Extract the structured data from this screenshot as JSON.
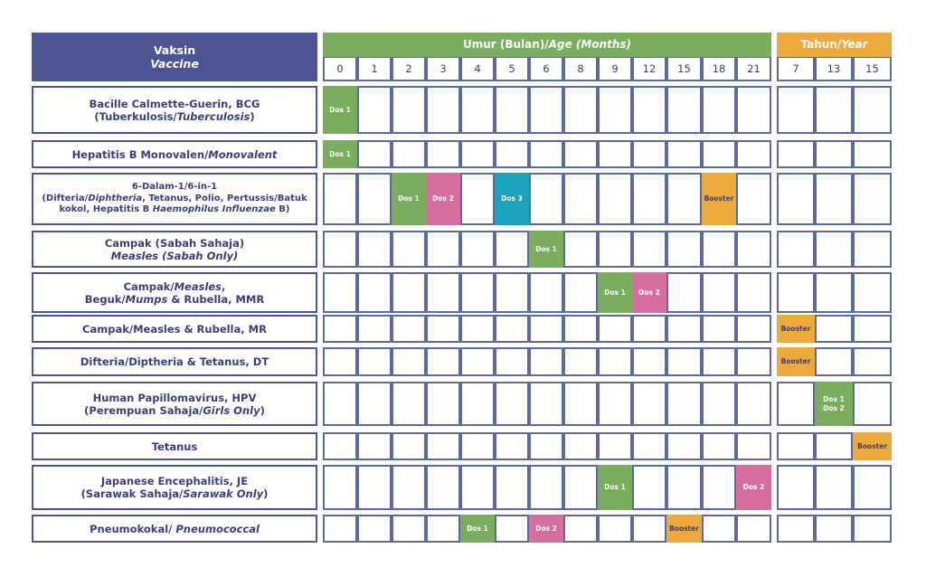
{
  "header": {
    "vaccine_ms": "Vaksin",
    "vaccine_en": "Vaccine",
    "months_prefix": "Umur (Bulan)/",
    "months_en": "Age (Months)",
    "years_prefix": "Tahun/",
    "years_en": "Year"
  },
  "months": [
    "0",
    "1",
    "2",
    "3",
    "4",
    "5",
    "6",
    "8",
    "9",
    "12",
    "15",
    "18",
    "21"
  ],
  "years": [
    "7",
    "13",
    "15"
  ],
  "colors": {
    "navy": "#4b5592",
    "green": "#7aad5e",
    "orange": "#eea93d",
    "pink": "#d56fa0",
    "teal": "#1ba3bd"
  },
  "vaccines": [
    {
      "lines": [
        [
          {
            "t": "Bacille Calmette-Guerin, BCG"
          }
        ],
        [
          {
            "t": "(Tuberkulosis/"
          },
          {
            "t": "Tuberculosis",
            "i": true
          },
          {
            "t": ")"
          }
        ]
      ],
      "doses": [
        {
          "col": 0,
          "label": "Dos 1",
          "color": "green"
        }
      ]
    },
    {
      "lines": [
        [
          {
            "t": "Hepatitis B Monovalen/"
          },
          {
            "t": "Monovalent",
            "i": true
          }
        ]
      ],
      "doses": [
        {
          "col": 0,
          "label": "Dos 1",
          "color": "green"
        }
      ]
    },
    {
      "small": true,
      "lines": [
        [
          {
            "t": "6-Dalam-1/6-in-1"
          }
        ],
        [
          {
            "t": "(Difteria/"
          },
          {
            "t": "Diphtheria",
            "i": true
          },
          {
            "t": ", Tetanus, Polio, Pertussis/Batuk"
          }
        ],
        [
          {
            "t": "kokol, Hepatitis B "
          },
          {
            "t": "Haemophilus Influenzae",
            "i": true
          },
          {
            "t": " B)"
          }
        ]
      ],
      "doses": [
        {
          "col": 2,
          "label": "Dos 1",
          "color": "green"
        },
        {
          "col": 3,
          "label": "Dos 2",
          "color": "pink"
        },
        {
          "col": 5,
          "label": "Dos 3",
          "color": "teal"
        },
        {
          "col": 11,
          "label": "Booster",
          "color": "orange"
        }
      ]
    },
    {
      "lines": [
        [
          {
            "t": "Campak (Sabah Sahaja)"
          }
        ],
        [
          {
            "t": "Measles (Sabah Only)",
            "i": true
          }
        ]
      ],
      "doses": [
        {
          "col": 6,
          "label": "Dos 1",
          "color": "green"
        }
      ]
    },
    {
      "lines": [
        [
          {
            "t": "Campak/"
          },
          {
            "t": "Measles",
            "i": true
          },
          {
            "t": ","
          }
        ],
        [
          {
            "t": "Beguk/"
          },
          {
            "t": "Mumps",
            "i": true
          },
          {
            "t": " & Rubella, MMR"
          }
        ]
      ],
      "doses": [
        {
          "col": 8,
          "label": "Dos 1",
          "color": "green"
        },
        {
          "col": 9,
          "label": "Dos 2",
          "color": "pink"
        }
      ]
    },
    {
      "lines": [
        [
          {
            "t": "Campak/Measles & Rubella, MR"
          }
        ]
      ],
      "doses": [
        {
          "col": 13,
          "label": "Booster",
          "color": "orange"
        }
      ]
    },
    {
      "lines": [
        [
          {
            "t": "Difteria/Diptheria & Tetanus, DT"
          }
        ]
      ],
      "doses": [
        {
          "col": 13,
          "label": "Booster",
          "color": "orange"
        }
      ]
    },
    {
      "lines": [
        [
          {
            "t": "Human Papillomavirus, HPV"
          }
        ],
        [
          {
            "t": "(Perempuan Sahaja/"
          },
          {
            "t": "Girls Only",
            "i": true
          },
          {
            "t": ")"
          }
        ]
      ],
      "doses": [
        {
          "col": 14,
          "label": "Dos 1",
          "label2": "Dos 2",
          "color": "green"
        }
      ]
    },
    {
      "lines": [
        [
          {
            "t": "Tetanus"
          }
        ]
      ],
      "doses": [
        {
          "col": 15,
          "label": "Booster",
          "color": "orange"
        }
      ]
    },
    {
      "lines": [
        [
          {
            "t": "Japanese Encephalitis, JE"
          }
        ],
        [
          {
            "t": "(Sarawak Sahaja/"
          },
          {
            "t": "Sarawak Only",
            "i": true
          },
          {
            "t": ")"
          }
        ]
      ],
      "doses": [
        {
          "col": 8,
          "label": "Dos 1",
          "color": "green"
        },
        {
          "col": 12,
          "label": "Dos 2",
          "color": "pink"
        }
      ]
    },
    {
      "lines": [
        [
          {
            "t": "Pneumokokal/ "
          },
          {
            "t": "Pneumococcal",
            "i": true
          }
        ]
      ],
      "doses": [
        {
          "col": 4,
          "label": "Dos 1",
          "color": "green"
        },
        {
          "col": 6,
          "label": "Dos 2",
          "color": "pink"
        },
        {
          "col": 10,
          "label": "Booster",
          "color": "orange"
        }
      ]
    }
  ]
}
